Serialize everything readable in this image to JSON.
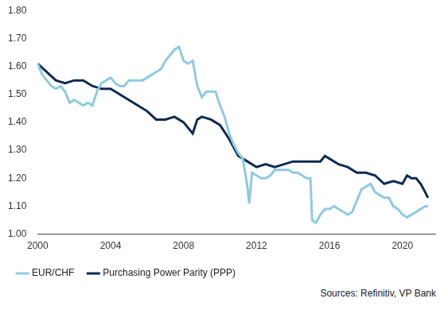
{
  "chart_data": {
    "type": "line",
    "source": "Sources: Refinitiv, VP Bank",
    "xlim": [
      2000,
      2021.8
    ],
    "xticks": [
      2000,
      2004,
      2008,
      2012,
      2016,
      2020
    ],
    "ylim": [
      1,
      1.8
    ],
    "yticks": [
      {
        "value": 1,
        "label": "1.00"
      },
      {
        "value": 1.1,
        "label": "1.10"
      },
      {
        "value": 1.2,
        "label": "1.20"
      },
      {
        "value": 1.3,
        "label": "1.30"
      },
      {
        "value": 1.4,
        "label": "1.40"
      },
      {
        "value": 1.5,
        "label": "1.50"
      },
      {
        "value": 1.6,
        "label": "1.60"
      },
      {
        "value": 1.7,
        "label": "1.70"
      },
      {
        "value": 1.8,
        "label": "1.80"
      }
    ],
    "grid": false,
    "legend": "bottom",
    "series": [
      {
        "name": "EUR/CHF",
        "color": "#8ecae2",
        "x": [
          2000,
          2000.25,
          2000.5,
          2000.75,
          2001,
          2001.25,
          2001.5,
          2001.75,
          2002,
          2002.25,
          2002.5,
          2002.75,
          2003,
          2003.25,
          2003.5,
          2003.75,
          2004,
          2004.25,
          2004.5,
          2004.75,
          2005,
          2005.25,
          2005.5,
          2005.75,
          2006,
          2006.25,
          2006.5,
          2006.75,
          2007,
          2007.25,
          2007.5,
          2007.75,
          2008,
          2008.25,
          2008.5,
          2008.75,
          2009,
          2009.25,
          2009.5,
          2009.75,
          2010,
          2010.25,
          2010.5,
          2010.75,
          2011,
          2011.25,
          2011.5,
          2011.6,
          2011.75,
          2012,
          2012.25,
          2012.5,
          2012.75,
          2013,
          2013.25,
          2013.5,
          2013.75,
          2014,
          2014.25,
          2014.5,
          2014.75,
          2014.95,
          2015.05,
          2015.25,
          2015.5,
          2015.75,
          2016,
          2016.25,
          2016.5,
          2016.75,
          2017,
          2017.25,
          2017.5,
          2017.75,
          2018,
          2018.25,
          2018.5,
          2018.75,
          2019,
          2019.25,
          2019.5,
          2019.75,
          2020,
          2020.25,
          2020.5,
          2020.75,
          2021,
          2021.25,
          2021.4
        ],
        "values": [
          1.61,
          1.57,
          1.55,
          1.53,
          1.52,
          1.53,
          1.51,
          1.47,
          1.48,
          1.47,
          1.46,
          1.47,
          1.46,
          1.51,
          1.54,
          1.55,
          1.56,
          1.54,
          1.53,
          1.53,
          1.55,
          1.55,
          1.55,
          1.55,
          1.56,
          1.57,
          1.58,
          1.59,
          1.62,
          1.64,
          1.66,
          1.67,
          1.62,
          1.61,
          1.62,
          1.53,
          1.49,
          1.51,
          1.51,
          1.51,
          1.46,
          1.42,
          1.36,
          1.32,
          1.29,
          1.27,
          1.17,
          1.11,
          1.22,
          1.21,
          1.2,
          1.2,
          1.21,
          1.23,
          1.23,
          1.23,
          1.23,
          1.22,
          1.22,
          1.21,
          1.2,
          1.2,
          1.05,
          1.04,
          1.07,
          1.09,
          1.09,
          1.1,
          1.09,
          1.08,
          1.07,
          1.08,
          1.12,
          1.16,
          1.17,
          1.18,
          1.15,
          1.14,
          1.13,
          1.13,
          1.1,
          1.09,
          1.07,
          1.06,
          1.07,
          1.08,
          1.09,
          1.1,
          1.1
        ]
      },
      {
        "name": "Purchasing Power Parity (PPP)",
        "color": "#0d2b52",
        "x": [
          2000,
          2000.5,
          2001,
          2001.5,
          2002,
          2002.5,
          2003,
          2003.5,
          2004,
          2004.5,
          2005,
          2005.5,
          2006,
          2006.5,
          2007,
          2007.5,
          2008,
          2008.5,
          2008.75,
          2009,
          2009.5,
          2010,
          2010.5,
          2011,
          2011.5,
          2012,
          2012.5,
          2013,
          2013.5,
          2014,
          2014.5,
          2015,
          2015.5,
          2015.75,
          2016,
          2016.5,
          2017,
          2017.5,
          2018,
          2018.5,
          2019,
          2019.5,
          2020,
          2020.25,
          2020.5,
          2020.75,
          2021,
          2021.25,
          2021.4
        ],
        "values": [
          1.61,
          1.58,
          1.55,
          1.54,
          1.55,
          1.55,
          1.53,
          1.52,
          1.52,
          1.5,
          1.48,
          1.46,
          1.44,
          1.41,
          1.41,
          1.42,
          1.4,
          1.36,
          1.41,
          1.42,
          1.41,
          1.39,
          1.34,
          1.28,
          1.26,
          1.24,
          1.25,
          1.24,
          1.25,
          1.26,
          1.26,
          1.26,
          1.26,
          1.28,
          1.27,
          1.25,
          1.24,
          1.22,
          1.22,
          1.21,
          1.18,
          1.19,
          1.18,
          1.21,
          1.2,
          1.2,
          1.18,
          1.15,
          1.13
        ]
      }
    ]
  }
}
